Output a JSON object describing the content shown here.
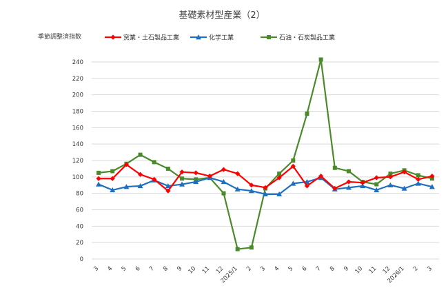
{
  "chart_data": {
    "type": "line",
    "title": "基礎素材型産業（2）",
    "ylabel": "季節調整済指数",
    "xlabel": "",
    "ylim": [
      0,
      240
    ],
    "yticks": [
      0,
      20,
      40,
      60,
      80,
      100,
      120,
      140,
      160,
      180,
      200,
      220,
      240
    ],
    "grid": true,
    "legend_position": "top",
    "categories": [
      "3",
      "4",
      "5",
      "6",
      "7",
      "8",
      "9",
      "10",
      "11",
      "12",
      "2025/1",
      "2",
      "3",
      "4",
      "5",
      "6",
      "7",
      "8",
      "9",
      "10",
      "11",
      "12",
      "2026/1",
      "2",
      "3"
    ],
    "series": [
      {
        "name": "窯業・土石製品工業",
        "color": "#ff0000",
        "marker": "diamond",
        "values": [
          98,
          98,
          115,
          103,
          97,
          83,
          106,
          105,
          101,
          109,
          104,
          90,
          87,
          99,
          113,
          89,
          101,
          86,
          94,
          93,
          99,
          100,
          106,
          97,
          101
        ]
      },
      {
        "name": "化学工業",
        "color": "#1f6fbf",
        "marker": "triangle",
        "values": [
          91,
          84,
          88,
          89,
          96,
          89,
          91,
          94,
          99,
          94,
          85,
          83,
          79,
          79,
          92,
          94,
          99,
          85,
          87,
          89,
          84,
          90,
          86,
          92,
          88
        ]
      },
      {
        "name": "石油・石炭製品工業",
        "color": "#4a8a2a",
        "marker": "square",
        "values": [
          105,
          107,
          116,
          127,
          118,
          110,
          98,
          97,
          99,
          80,
          12,
          14,
          86,
          104,
          120,
          177,
          243,
          111,
          107,
          94,
          91,
          104,
          108,
          102,
          98
        ]
      }
    ]
  }
}
